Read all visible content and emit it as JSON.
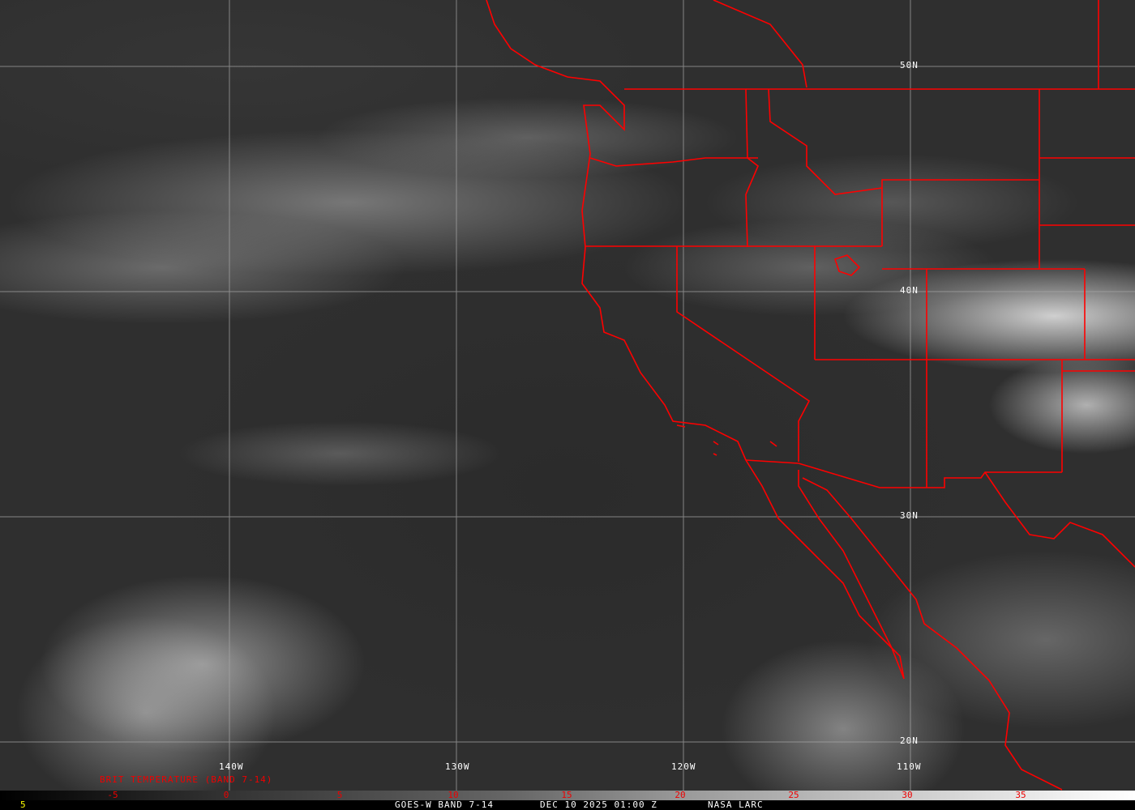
{
  "map": {
    "type": "satellite-imagery",
    "overlay_color": "#ff0000",
    "grid_color": "#b0b0b0",
    "latitude_labels": [
      "50N",
      "40N",
      "30N",
      "20N"
    ],
    "longitude_labels": [
      "140W",
      "130W",
      "120W",
      "110W"
    ]
  },
  "colorbar": {
    "title": "BRIT TEMPERATURE (BAND 7-14)",
    "ticks": [
      "-5",
      "0",
      "5",
      "10",
      "15",
      "20",
      "25",
      "30",
      "35"
    ],
    "range": [
      -10,
      40
    ],
    "gradient": [
      "#000000",
      "#ffffff"
    ],
    "tick_color": "#ff0000"
  },
  "footer": {
    "frame_number": "5",
    "product": "GOES-W BAND 7-14",
    "datetime": "DEC 10 2025 01:00 Z",
    "credit": "NASA LARC"
  }
}
